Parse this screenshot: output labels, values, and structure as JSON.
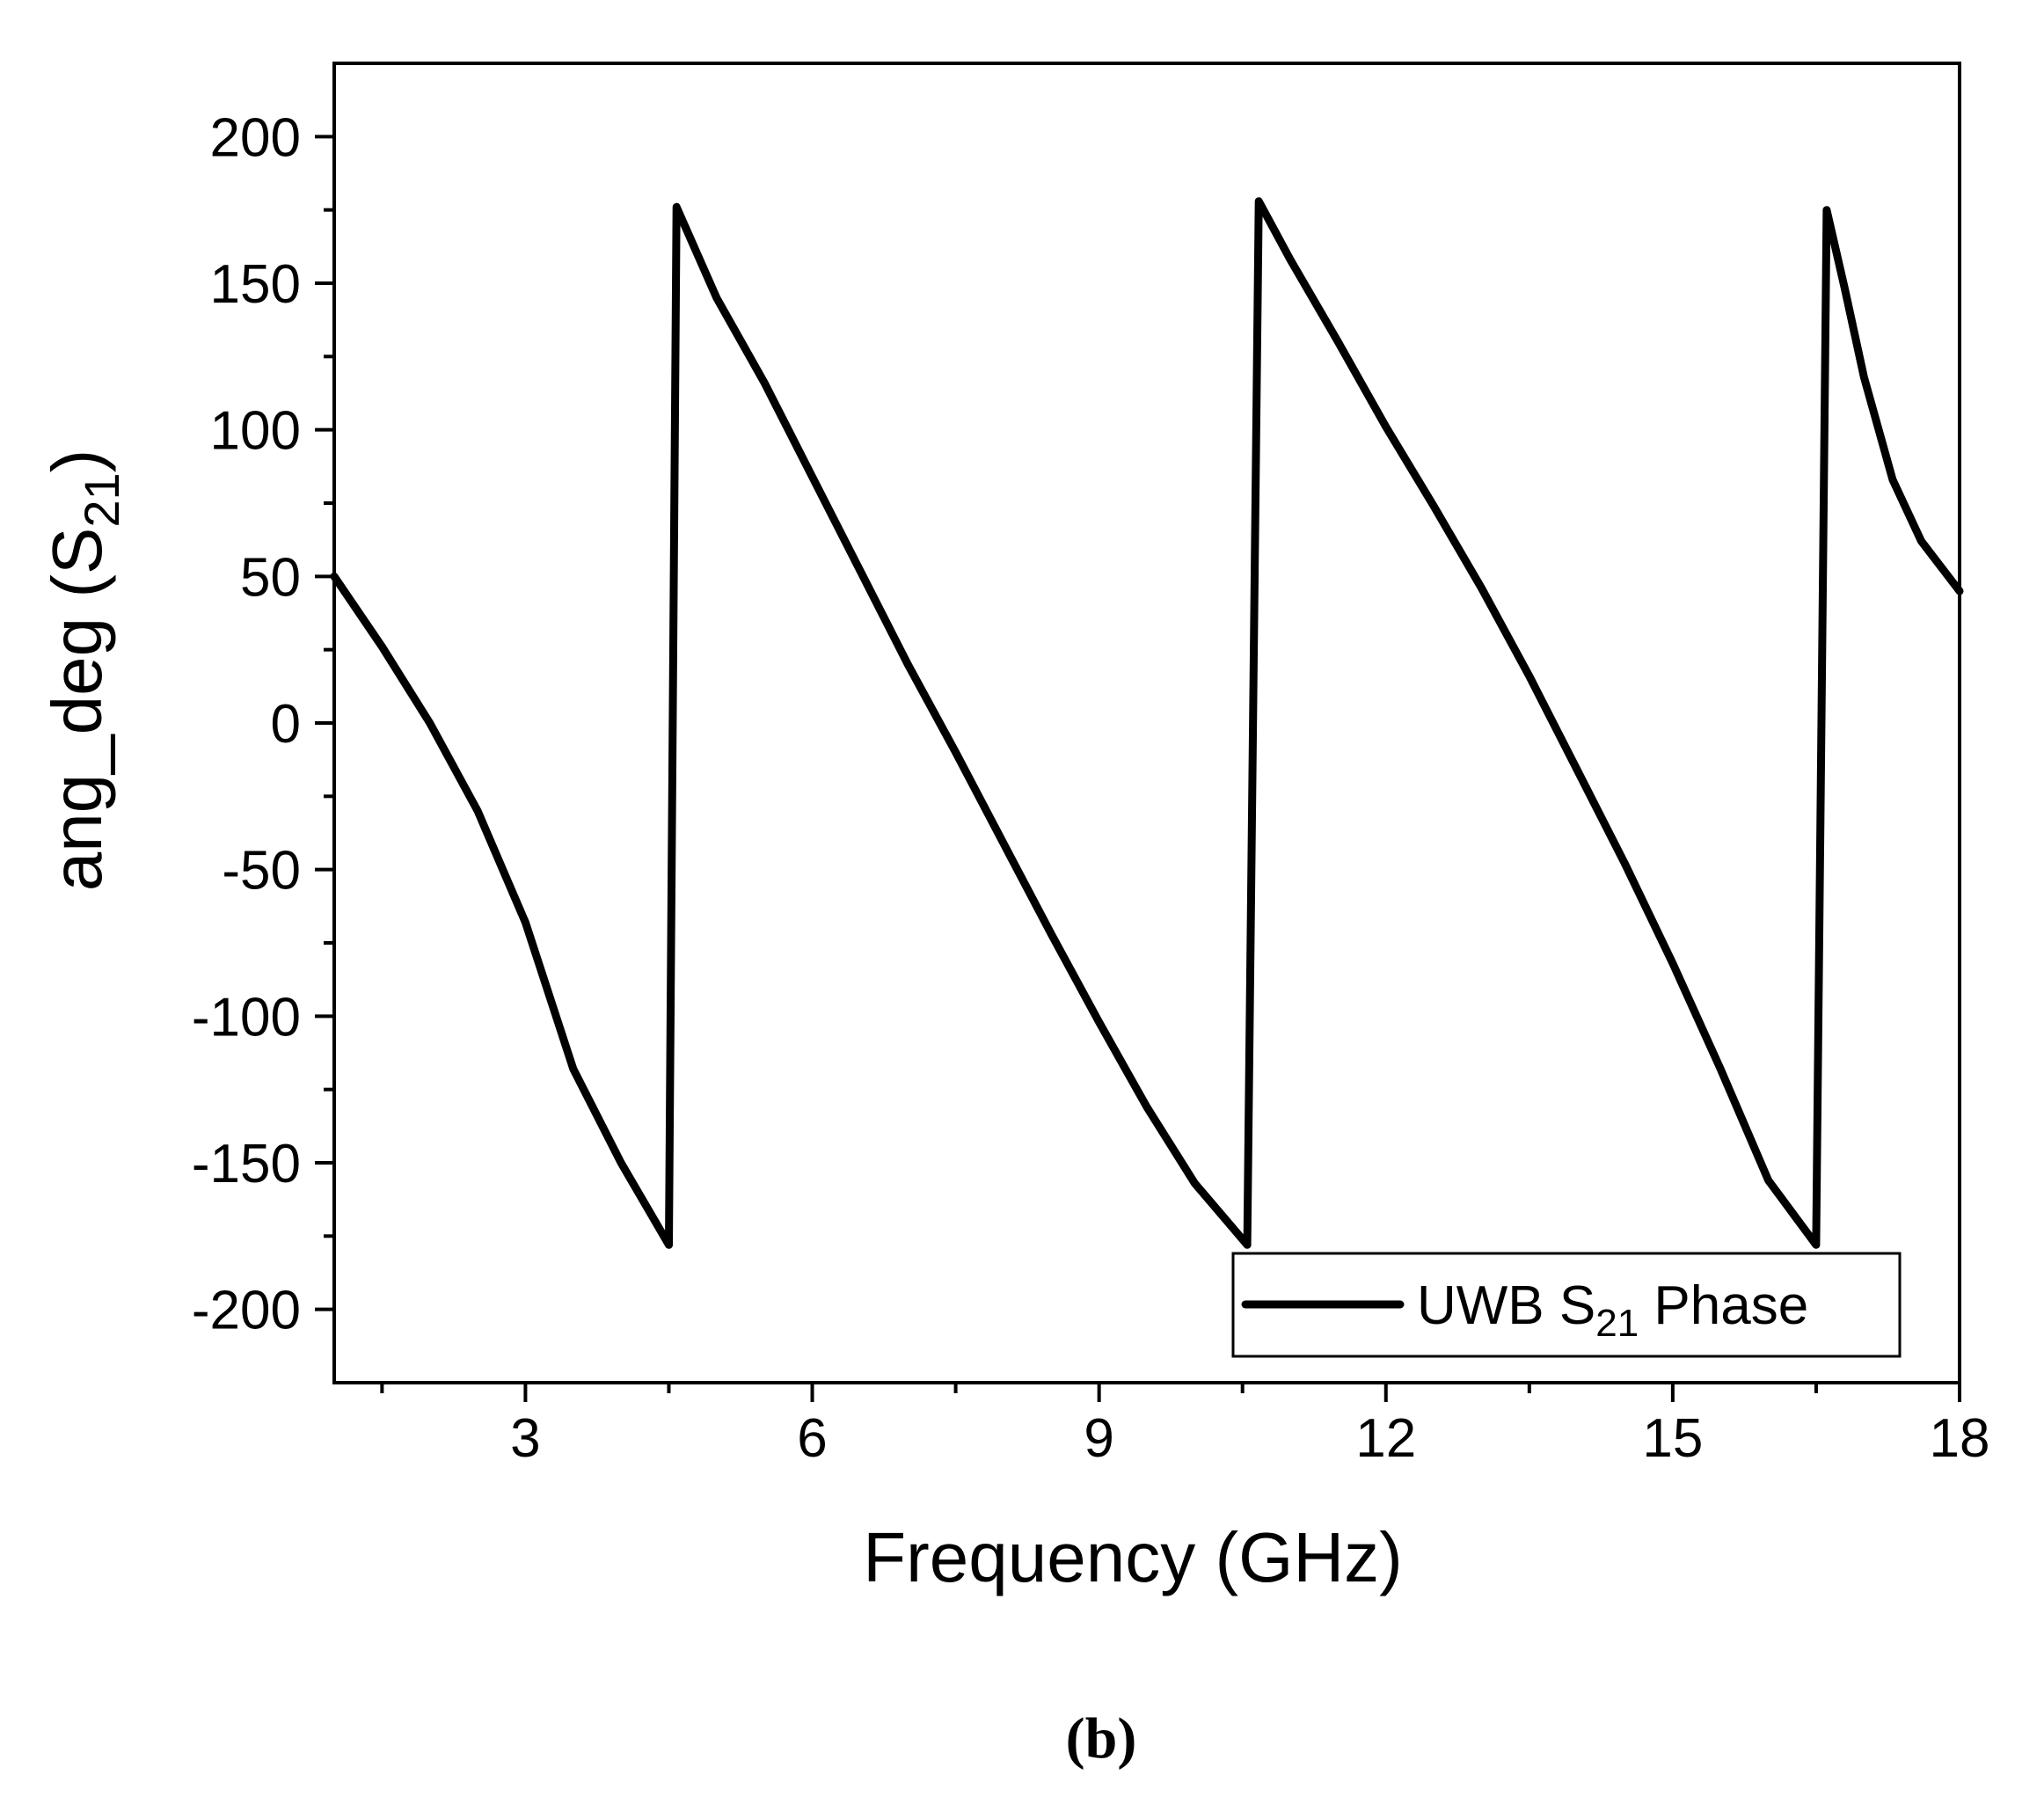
{
  "chart_data": {
    "type": "line",
    "title": "",
    "caption": "(b)",
    "xlabel": "Frequency (GHz)",
    "ylabel": {
      "prefix": "ang_deg (S",
      "sub": "21",
      "suffix": ")"
    },
    "xlim": [
      1,
      18
    ],
    "ylim": [
      -225,
      225
    ],
    "xticks": [
      3,
      6,
      9,
      12,
      15,
      18
    ],
    "yticks": [
      200,
      150,
      100,
      50,
      0,
      -50,
      -100,
      -150,
      -200
    ],
    "grid": false,
    "legend": {
      "position": "bottom-right",
      "text_prefix": "UWB S",
      "text_sub": "21",
      "text_suffix": " Phase"
    },
    "series": [
      {
        "name": "UWB S21 Phase",
        "color": "#000000",
        "x": [
          1.0,
          1.5,
          2.0,
          2.5,
          3.0,
          3.5,
          4.0,
          4.5,
          4.58,
          5.0,
          5.5,
          6.0,
          6.5,
          7.0,
          7.5,
          8.0,
          8.5,
          9.0,
          9.5,
          10.0,
          10.55,
          10.67,
          11.0,
          11.5,
          12.0,
          12.5,
          13.0,
          13.5,
          14.0,
          14.5,
          15.0,
          15.5,
          16.0,
          16.5,
          16.61,
          16.8,
          17.0,
          17.3,
          17.6,
          18.0
        ],
        "y": [
          50,
          26,
          0,
          -30,
          -68,
          -118,
          -150,
          -178,
          176,
          145,
          116,
          84,
          52,
          20,
          -10,
          -41,
          -72,
          -102,
          -131,
          -157,
          -178,
          178,
          158,
          130,
          101,
          74,
          46,
          16,
          -16,
          -48,
          -82,
          -118,
          -156,
          -178,
          175,
          148,
          118,
          83,
          62,
          45
        ]
      }
    ]
  }
}
